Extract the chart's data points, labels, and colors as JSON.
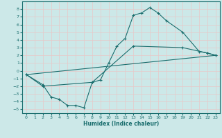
{
  "title": "",
  "xlabel": "Humidex (Indice chaleur)",
  "background_color": "#cce8e8",
  "grid_color": "#e8c8c8",
  "line_color": "#1a6e6e",
  "xlim": [
    -0.5,
    23.5
  ],
  "ylim": [
    -5.5,
    9.0
  ],
  "xticks": [
    0,
    1,
    2,
    3,
    4,
    5,
    6,
    7,
    8,
    9,
    10,
    11,
    12,
    13,
    14,
    15,
    16,
    17,
    18,
    19,
    20,
    21,
    22,
    23
  ],
  "yticks": [
    -5,
    -4,
    -3,
    -2,
    -1,
    0,
    1,
    2,
    3,
    4,
    5,
    6,
    7,
    8
  ],
  "line1_x": [
    0,
    2,
    3,
    4,
    5,
    6,
    7,
    8,
    9,
    10,
    11,
    12,
    13,
    14,
    15,
    16,
    17,
    19,
    21,
    22,
    23
  ],
  "line1_y": [
    -0.5,
    -1.8,
    -3.4,
    -3.7,
    -4.5,
    -4.5,
    -4.8,
    -1.5,
    -1.2,
    1.0,
    3.2,
    4.2,
    7.2,
    7.5,
    8.2,
    7.5,
    6.5,
    5.0,
    2.5,
    2.3,
    2.0
  ],
  "line2_x": [
    0,
    23
  ],
  "line2_y": [
    -0.5,
    2.0
  ],
  "line3_x": [
    0,
    2,
    8,
    13,
    19,
    22,
    23
  ],
  "line3_y": [
    -0.5,
    -2.0,
    -1.5,
    3.2,
    3.0,
    2.3,
    2.0
  ],
  "xlabel_fontsize": 5.5,
  "tick_fontsize": 4.5
}
